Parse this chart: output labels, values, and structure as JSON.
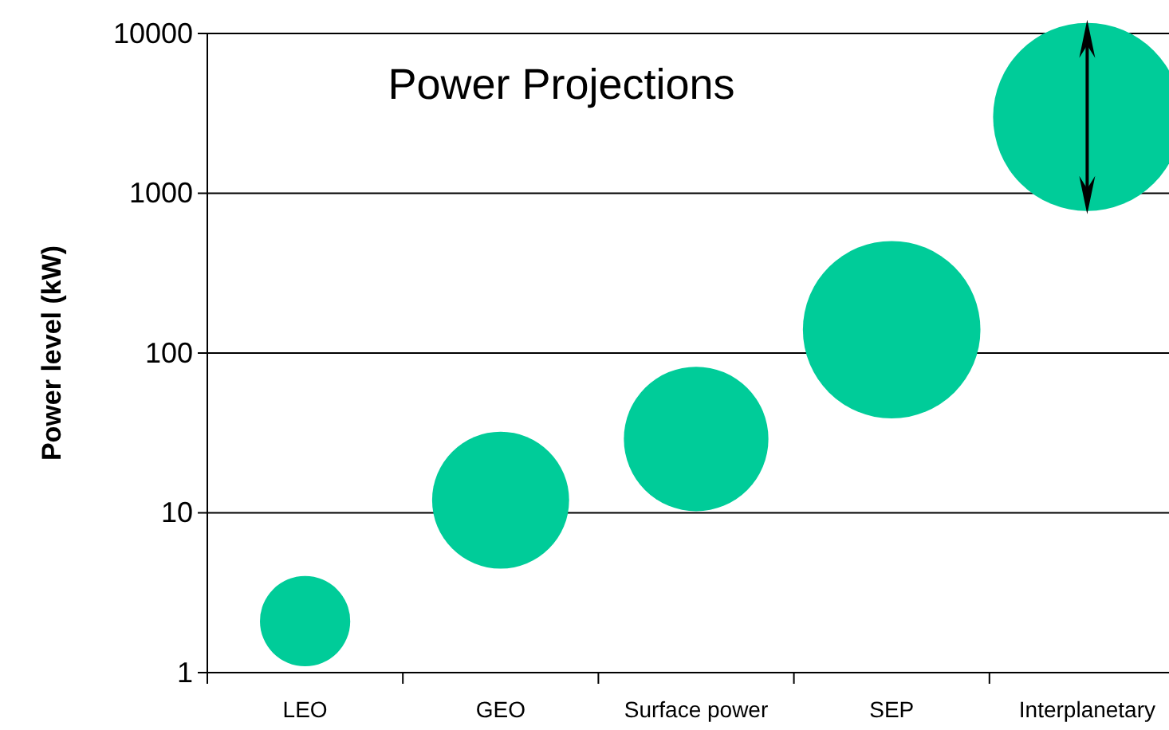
{
  "chart_data": {
    "type": "bubble",
    "title": "Power Projections",
    "ylabel": "Power level (kW)",
    "categories": [
      "LEO",
      "GEO",
      "Surface power",
      "SEP",
      "Interplanetary"
    ],
    "values": [
      2.1,
      12,
      29,
      140,
      3000
    ],
    "sizes": [
      0.23,
      0.53,
      0.59,
      0.89,
      1
    ],
    "color": "#00cc99",
    "log": true,
    "ylim": [
      1,
      10000
    ],
    "yticks": [
      1,
      10,
      100,
      1000,
      10000
    ],
    "grid": "y"
  }
}
